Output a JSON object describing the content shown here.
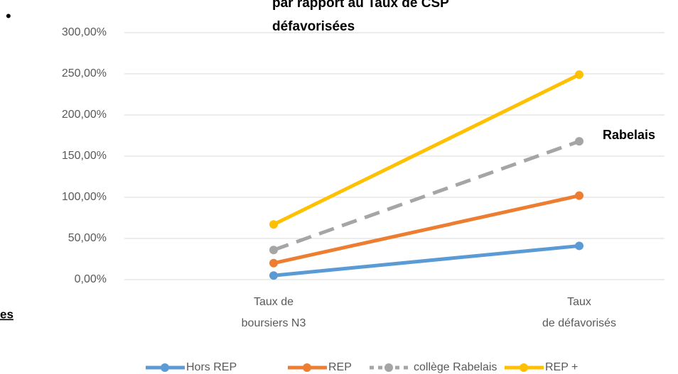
{
  "bullet": "•",
  "fragment": "es",
  "chart_data": {
    "type": "line",
    "title": "par rapport au Taux de CSP\ndéfavorisées",
    "annotation": "Rabelais",
    "categories": [
      "Taux de\nboursiers N3",
      "Taux\nde défavorisés"
    ],
    "series": [
      {
        "name": "Hors REP",
        "color": "#5b9bd5",
        "dashed": false,
        "values": [
          5,
          41
        ]
      },
      {
        "name": "REP",
        "color": "#ed7d31",
        "dashed": false,
        "values": [
          20,
          102
        ]
      },
      {
        "name": "collège Rabelais",
        "color": "#a5a5a5",
        "dashed": true,
        "values": [
          36,
          168
        ]
      },
      {
        "name": "REP +",
        "color": "#ffc000",
        "dashed": false,
        "values": [
          67,
          249
        ]
      }
    ],
    "ylim": [
      0,
      300
    ],
    "yticks": [
      {
        "value": 0,
        "label": "0,00%"
      },
      {
        "value": 50,
        "label": "50,00%"
      },
      {
        "value": 100,
        "label": "100,00%"
      },
      {
        "value": 150,
        "label": "150,00%"
      },
      {
        "value": 200,
        "label": "200,00%"
      },
      {
        "value": 250,
        "label": "250,00%"
      },
      {
        "value": 300,
        "label": "300,00%"
      }
    ],
    "grid": true,
    "legend": "bottom"
  }
}
